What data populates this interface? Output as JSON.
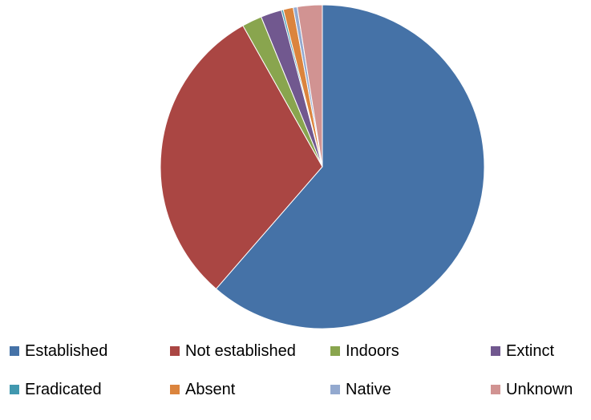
{
  "chart_data": {
    "type": "pie",
    "start_angle_deg": 0,
    "direction": "clockwise",
    "legend_position": "bottom",
    "slices": [
      {
        "label": "Established",
        "value": 61.7,
        "color": "#4572A7"
      },
      {
        "label": "Not established",
        "value": 30.6,
        "color": "#AA4643"
      },
      {
        "label": "Indoors",
        "value": 2.0,
        "color": "#89A54E"
      },
      {
        "label": "Extinct",
        "value": 2.1,
        "color": "#71588F"
      },
      {
        "label": "Eradicated",
        "value": 0.2,
        "color": "#4198AF"
      },
      {
        "label": "Absent",
        "value": 1.0,
        "color": "#DB843D"
      },
      {
        "label": "Native",
        "value": 0.4,
        "color": "#93A9CF"
      },
      {
        "label": "Unknown",
        "value": 2.5,
        "color": "#D19392"
      }
    ]
  }
}
